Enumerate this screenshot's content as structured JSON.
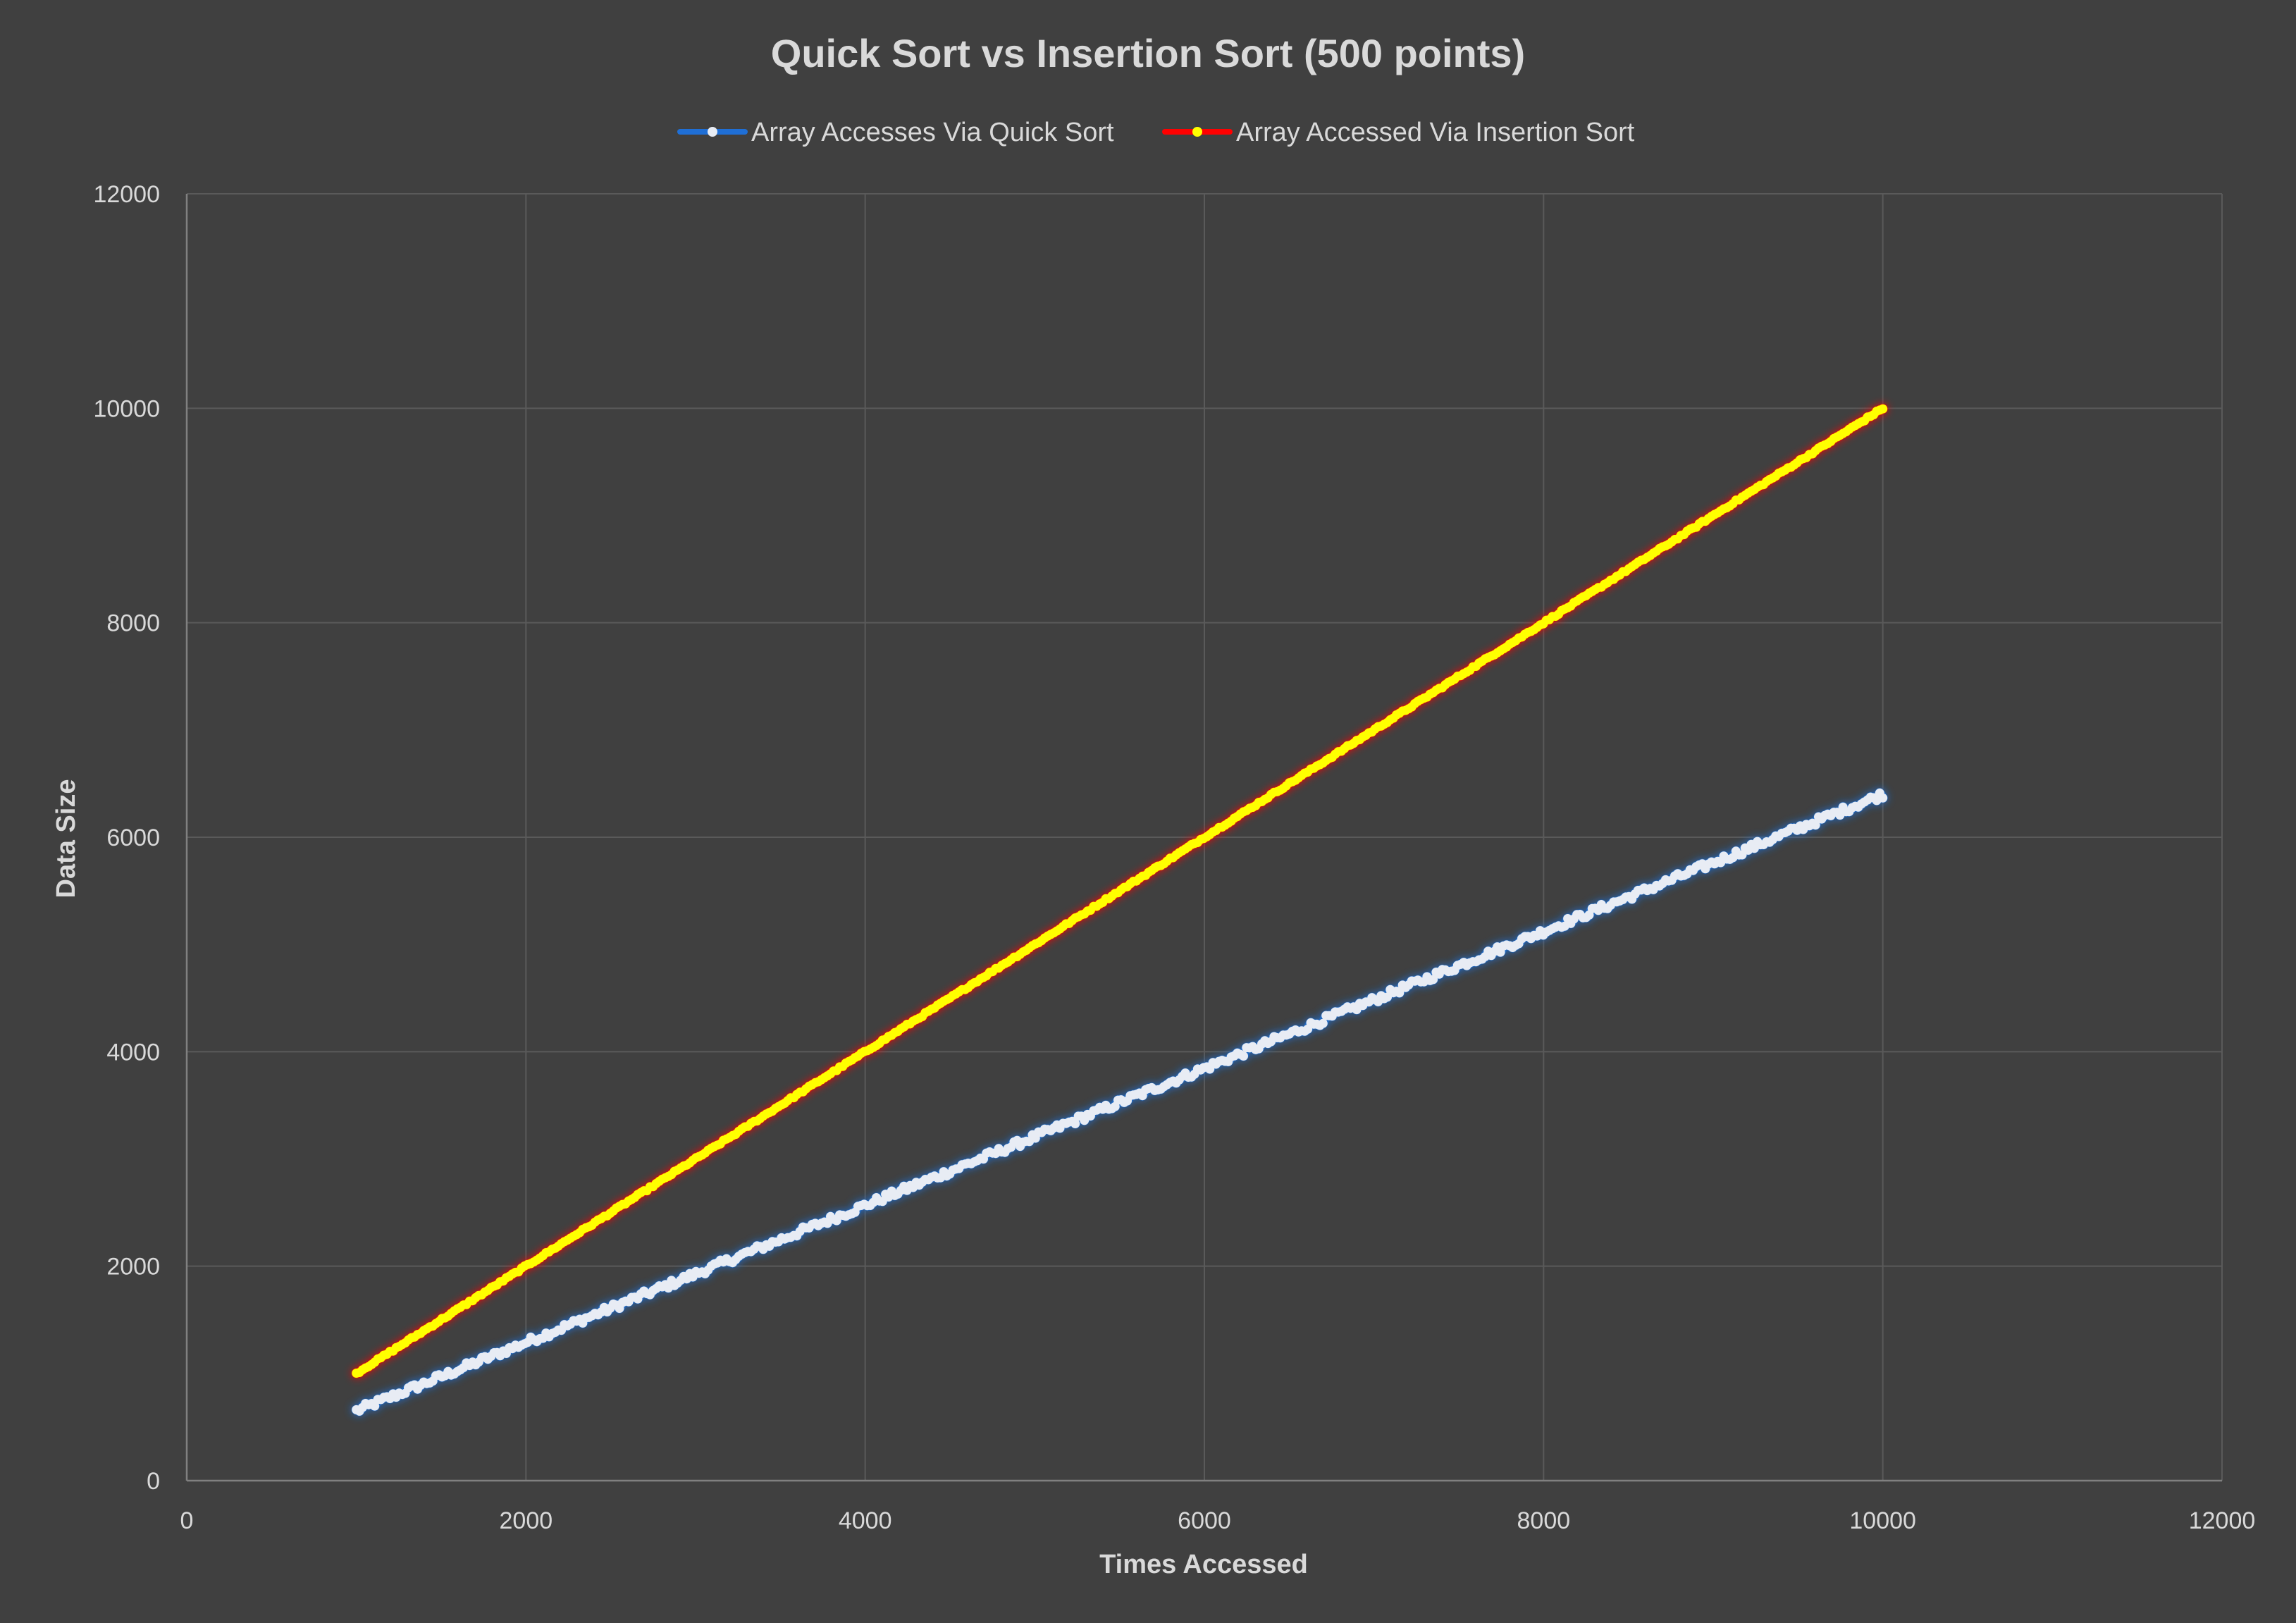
{
  "chart_data": {
    "type": "scatter",
    "title": "Quick Sort vs Insertion Sort (500 points)",
    "xlabel": "Times Accessed",
    "ylabel": "Data Size",
    "xlim": [
      0,
      12000
    ],
    "ylim": [
      0,
      12000
    ],
    "x_ticks": [
      0,
      2000,
      4000,
      6000,
      8000,
      10000,
      12000
    ],
    "y_ticks": [
      0,
      2000,
      4000,
      6000,
      8000,
      10000,
      12000
    ],
    "grid": true,
    "legend_position": "top",
    "point_count": 500,
    "series": [
      {
        "name": "Array Accesses Via Quick Sort",
        "line_color": "#1f6fd6",
        "marker_color": "#e8ecf4",
        "x_range": [
          1000,
          10000
        ],
        "y_range": [
          650,
          6400
        ]
      },
      {
        "name": "Array Accessed Via Insertion Sort",
        "line_color": "#ff0000",
        "marker_color": "#ffff00",
        "x_range": [
          1000,
          10000
        ],
        "y_range": [
          1000,
          10000
        ]
      }
    ]
  }
}
